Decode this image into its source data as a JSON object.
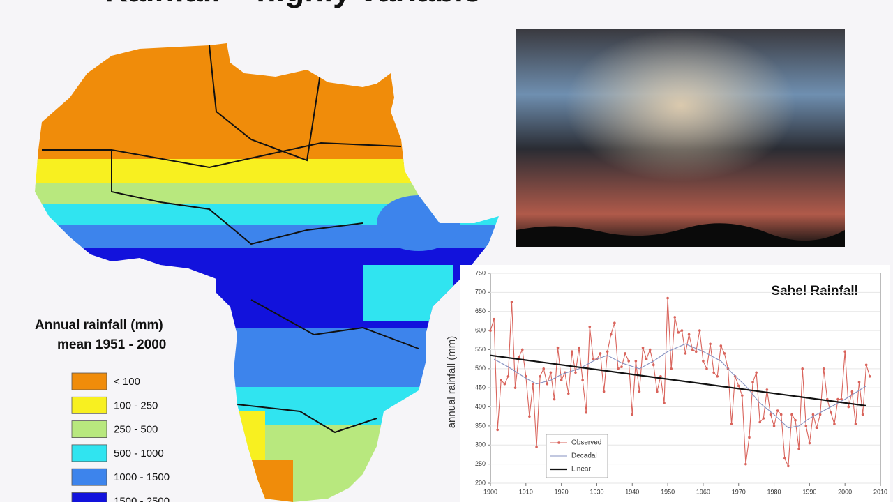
{
  "header": {
    "title": "Rainfall – highly variable"
  },
  "map": {
    "legend_title": "Annual rainfall (mm)",
    "legend_subtitle": "mean 1951 - 2000",
    "legend": [
      {
        "label": "< 100",
        "color": "#f08c0a"
      },
      {
        "label": "100 - 250",
        "color": "#f8f020"
      },
      {
        "label": "250 - 500",
        "color": "#b8e87e"
      },
      {
        "label": "500 - 1000",
        "color": "#30e4f0"
      },
      {
        "label": "1000 - 1500",
        "color": "#3d84ec"
      },
      {
        "label": "1500 - 2500",
        "color": "#1212dc"
      }
    ]
  },
  "chart_data": {
    "type": "line",
    "title": "Sahel Rainfall",
    "y_label": "annual rainfall (mm)",
    "xlim": [
      1900,
      2010
    ],
    "xticks": [
      1900,
      1910,
      1920,
      1930,
      1940,
      1950,
      1960,
      1970,
      1980,
      1990,
      2000,
      2010
    ],
    "ylim": [
      200,
      750
    ],
    "yticks": [
      200,
      250,
      300,
      350,
      400,
      450,
      500,
      550,
      600,
      650,
      700,
      750
    ],
    "grid": true,
    "legend": "lower-left",
    "series": [
      {
        "name": "Observed",
        "color": "#d9645c",
        "markers": true,
        "x": [
          1900,
          1901,
          1902,
          1903,
          1904,
          1905,
          1906,
          1907,
          1908,
          1909,
          1910,
          1911,
          1912,
          1913,
          1914,
          1915,
          1916,
          1917,
          1918,
          1919,
          1920,
          1921,
          1922,
          1923,
          1924,
          1925,
          1926,
          1927,
          1928,
          1929,
          1930,
          1931,
          1932,
          1933,
          1934,
          1935,
          1936,
          1937,
          1938,
          1939,
          1940,
          1941,
          1942,
          1943,
          1944,
          1945,
          1946,
          1947,
          1948,
          1949,
          1950,
          1951,
          1952,
          1953,
          1954,
          1955,
          1956,
          1957,
          1958,
          1959,
          1960,
          1961,
          1962,
          1963,
          1964,
          1965,
          1966,
          1967,
          1968,
          1969,
          1970,
          1971,
          1972,
          1973,
          1974,
          1975,
          1976,
          1977,
          1978,
          1979,
          1980,
          1981,
          1982,
          1983,
          1984,
          1985,
          1986,
          1987,
          1988,
          1989,
          1990,
          1991,
          1992,
          1993,
          1994,
          1995,
          1996,
          1997,
          1998,
          1999,
          2000,
          2001,
          2002,
          2003,
          2004,
          2005,
          2006,
          2007
        ],
        "values": [
          600,
          630,
          340,
          470,
          460,
          480,
          675,
          450,
          530,
          550,
          480,
          375,
          460,
          295,
          480,
          500,
          460,
          490,
          420,
          555,
          470,
          490,
          435,
          545,
          490,
          555,
          470,
          385,
          610,
          525,
          525,
          540,
          440,
          545,
          590,
          620,
          500,
          505,
          540,
          520,
          380,
          520,
          440,
          555,
          525,
          550,
          510,
          440,
          480,
          410,
          685,
          500,
          635,
          595,
          600,
          540,
          590,
          550,
          545,
          600,
          520,
          500,
          565,
          490,
          480,
          560,
          540,
          500,
          355,
          480,
          455,
          430,
          250,
          320,
          465,
          490,
          360,
          370,
          445,
          380,
          350,
          390,
          380,
          265,
          245,
          380,
          365,
          290,
          500,
          350,
          305,
          380,
          345,
          380,
          500,
          420,
          385,
          355,
          420,
          420,
          545,
          400,
          440,
          355,
          465,
          380,
          510,
          480
        ]
      },
      {
        "name": "Decadal",
        "color": "#8490c0",
        "markers": false,
        "x": [
          1901,
          1905,
          1910,
          1913,
          1917,
          1920,
          1925,
          1930,
          1933,
          1937,
          1942,
          1946,
          1950,
          1955,
          1960,
          1965,
          1968,
          1972,
          1976,
          1980,
          1984,
          1987,
          1990,
          1995,
          2000,
          2006
        ],
        "values": [
          525,
          505,
          475,
          460,
          470,
          485,
          500,
          525,
          535,
          515,
          500,
          520,
          545,
          565,
          545,
          520,
          490,
          455,
          410,
          380,
          345,
          350,
          370,
          395,
          420,
          455
        ]
      },
      {
        "name": "Linear",
        "color": "#111111",
        "markers": false,
        "x": [
          1900,
          2006
        ],
        "values": [
          535,
          403
        ]
      }
    ]
  }
}
